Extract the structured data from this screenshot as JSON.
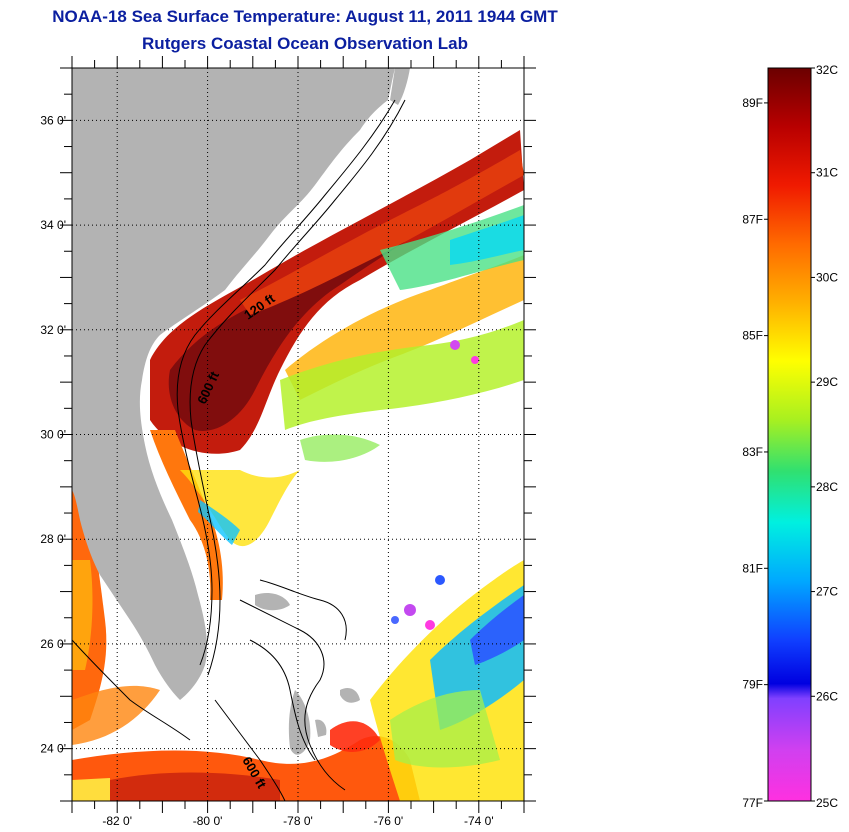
{
  "header": {
    "title": "NOAA-18 Sea Surface Temperature:  August 11, 2011 1944 GMT",
    "subtitle": "Rutgers Coastal Ocean Observation Lab"
  },
  "map": {
    "lat_range": [
      23,
      37
    ],
    "lon_range": [
      -83,
      -73
    ],
    "lat_labels": [
      {
        "value": 36,
        "text": "36 0'"
      },
      {
        "value": 34,
        "text": "34 0'"
      },
      {
        "value": 32,
        "text": "32 0'"
      },
      {
        "value": 30,
        "text": "30 0'"
      },
      {
        "value": 28,
        "text": "28 0'"
      },
      {
        "value": 26,
        "text": "26 0'"
      },
      {
        "value": 24,
        "text": "24 0'"
      }
    ],
    "lon_labels": [
      {
        "value": -82,
        "text": "-82 0'"
      },
      {
        "value": -80,
        "text": "-80 0'"
      },
      {
        "value": -78,
        "text": "-78 0'"
      },
      {
        "value": -76,
        "text": "-76 0'"
      },
      {
        "value": -74,
        "text": "-74 0'"
      }
    ],
    "contour_labels": [
      {
        "text": "120 ft"
      },
      {
        "text": "600 ft"
      },
      {
        "text": "600 ft"
      }
    ],
    "colors": {
      "land": "#b3b3b3",
      "water_no_data": "#ffffff",
      "grid": "#000000"
    }
  },
  "colorbar": {
    "range_c": [
      25,
      32
    ],
    "celsius_labels": [
      {
        "value": 32,
        "text": "32C"
      },
      {
        "value": 31,
        "text": "31C"
      },
      {
        "value": 30,
        "text": "30C"
      },
      {
        "value": 29,
        "text": "29C"
      },
      {
        "value": 28,
        "text": "28C"
      },
      {
        "value": 27,
        "text": "27C"
      },
      {
        "value": 26,
        "text": "26C"
      },
      {
        "value": 25,
        "text": "25C"
      }
    ],
    "fahrenheit_labels": [
      {
        "value": 89,
        "text": "89F"
      },
      {
        "value": 87,
        "text": "87F"
      },
      {
        "value": 85,
        "text": "85F"
      },
      {
        "value": 83,
        "text": "83F"
      },
      {
        "value": 81,
        "text": "81F"
      },
      {
        "value": 79,
        "text": "79F"
      },
      {
        "value": 77,
        "text": "77F"
      }
    ],
    "color_stops": [
      {
        "offset": 0.0,
        "color": "#6b0000"
      },
      {
        "offset": 0.08,
        "color": "#b80000"
      },
      {
        "offset": 0.16,
        "color": "#f01a00"
      },
      {
        "offset": 0.24,
        "color": "#ff6a00"
      },
      {
        "offset": 0.32,
        "color": "#ffb000"
      },
      {
        "offset": 0.4,
        "color": "#ffff00"
      },
      {
        "offset": 0.48,
        "color": "#a8f020"
      },
      {
        "offset": 0.55,
        "color": "#30e070"
      },
      {
        "offset": 0.62,
        "color": "#00f0e0"
      },
      {
        "offset": 0.7,
        "color": "#00a8ff"
      },
      {
        "offset": 0.78,
        "color": "#1040ff"
      },
      {
        "offset": 0.84,
        "color": "#0000e0"
      },
      {
        "offset": 0.86,
        "color": "#8040ff"
      },
      {
        "offset": 0.93,
        "color": "#d040f0"
      },
      {
        "offset": 1.0,
        "color": "#ff30e0"
      }
    ]
  }
}
